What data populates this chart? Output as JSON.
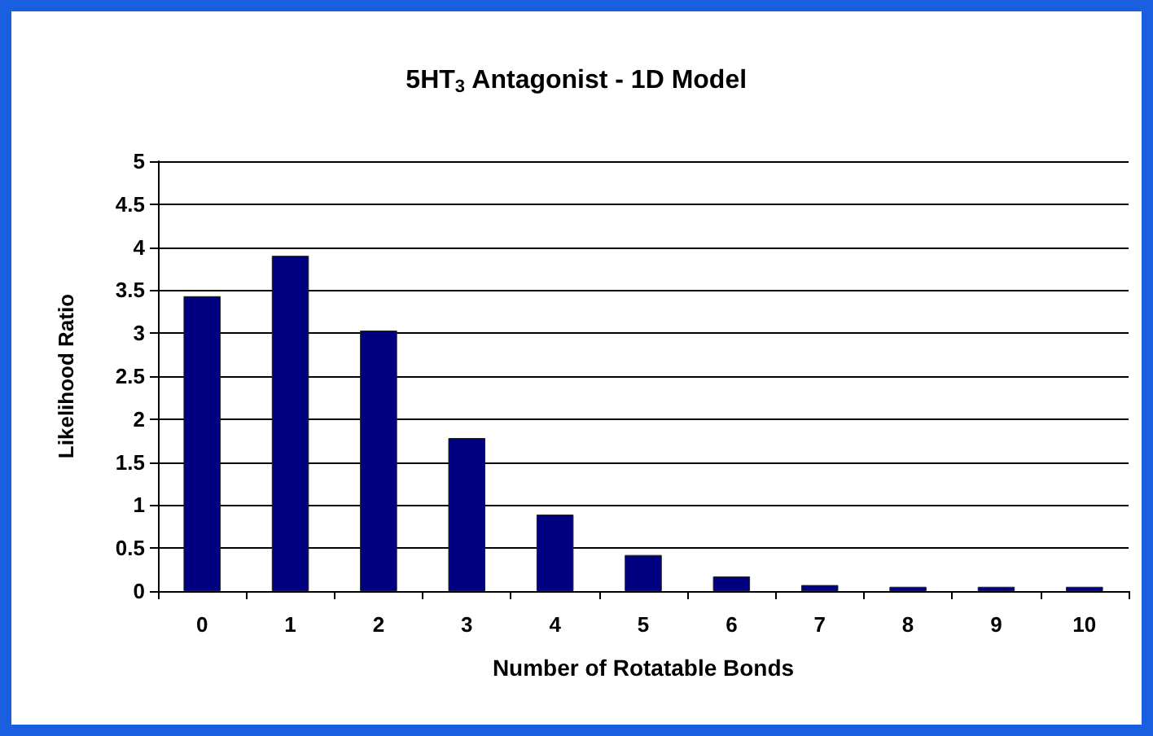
{
  "chart_data": {
    "type": "bar",
    "title": "5HT$_{3}$ Antagonist - 1D Model",
    "xlabel": "Number of Rotatable Bonds",
    "ylabel": "Likelihood Ratio",
    "categories": [
      "0",
      "1",
      "2",
      "3",
      "4",
      "5",
      "6",
      "7",
      "8",
      "9",
      "10"
    ],
    "values": [
      3.43,
      3.9,
      3.03,
      1.78,
      0.89,
      0.42,
      0.17,
      0.07,
      0.05,
      0.05,
      0.05
    ],
    "color": "#000080",
    "ylim": [
      0,
      5
    ],
    "yticks": [
      0,
      0.5,
      1,
      1.5,
      2,
      2.5,
      3,
      3.5,
      4,
      4.5,
      5
    ],
    "grid": "y"
  }
}
